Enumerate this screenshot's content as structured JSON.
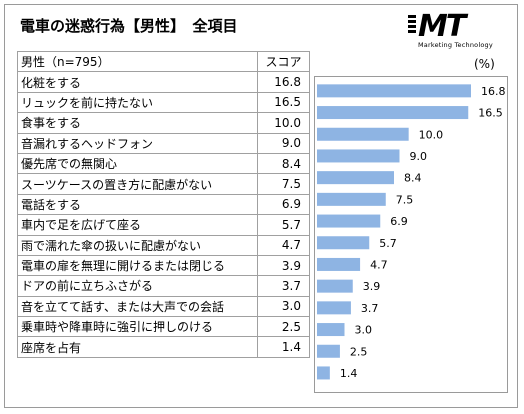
{
  "title": "電車の迷惑行為【男性】　全項目",
  "logo": {
    "main": "MT",
    "sub": "Marketing Technology"
  },
  "table": {
    "header_label": "男性（n=795）",
    "header_score": "スコア"
  },
  "unit_label": "(%)",
  "colors": {
    "bar": "#8eb4e3",
    "border": "#a0a0a0"
  },
  "chart_data": {
    "type": "bar",
    "orientation": "horizontal",
    "categories": [
      "化粧をする",
      "リュックを前に持たない",
      "食事をする",
      "音漏れするヘッドフォン",
      "優先席での無関心",
      "スーツケースの置き方に配慮がない",
      "電話をする",
      "車内で足を広げて座る",
      "雨で濡れた傘の扱いに配慮がない",
      "電車の扉を無理に開けるまたは閉じる",
      "ドアの前に立ちふさがる",
      "音を立てて話す、または大声での会話",
      "乗車時や降車時に強引に押しのける",
      "座席を占有"
    ],
    "values": [
      "16.8",
      "16.5",
      "10.0",
      "9.0",
      "8.4",
      "7.5",
      "6.9",
      "5.7",
      "4.7",
      "3.9",
      "3.7",
      "3.0",
      "2.5",
      "1.4"
    ],
    "xlim": [
      0,
      16.8
    ],
    "grid": false
  }
}
